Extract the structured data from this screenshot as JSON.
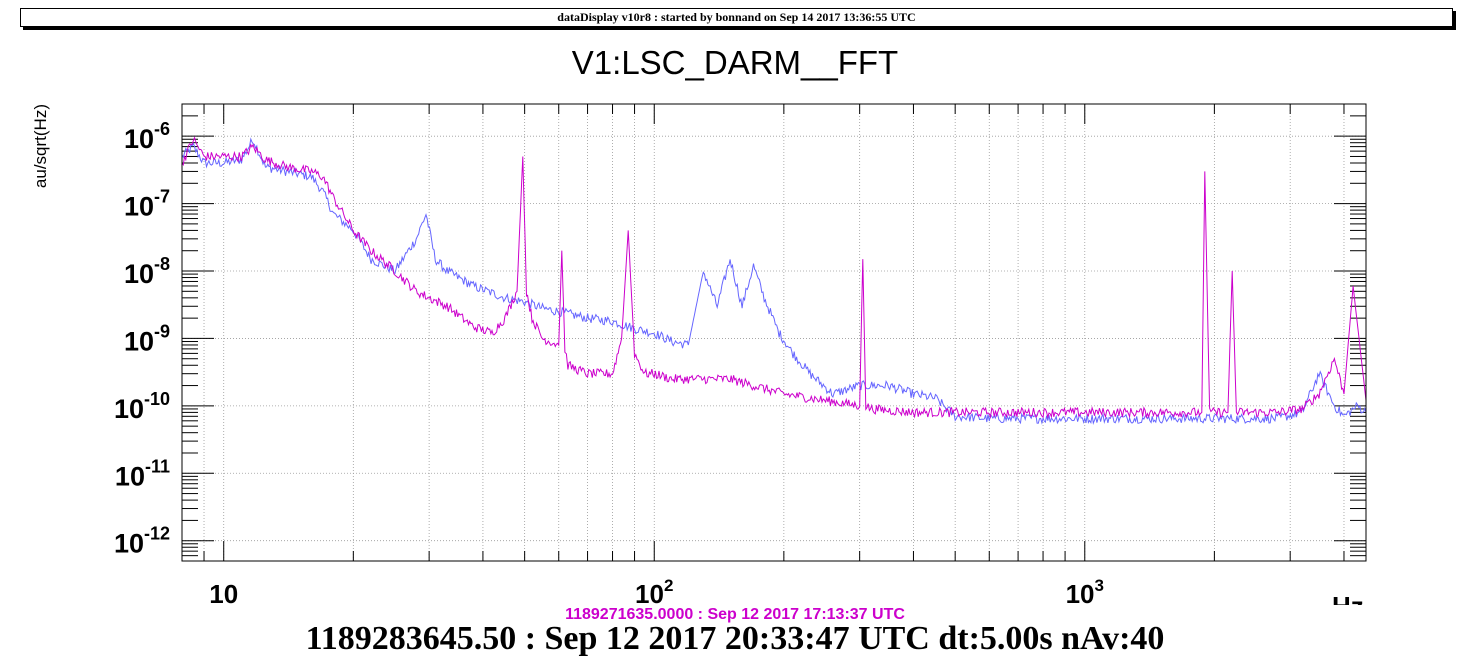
{
  "header": {
    "text": "dataDisplay v10r8 : started by bonnand on Sep 14 2017 13:36:55 UTC"
  },
  "colors": {
    "current": "#cc00cc",
    "reference": "#6666ff",
    "reference_label": "#cc00cc"
  },
  "chart_data": {
    "type": "line",
    "title": "V1:LSC_DARM__FFT",
    "ylabel": "au/sqrt(Hz)",
    "xlabel": "Hz",
    "xscale": "log",
    "yscale": "log",
    "xlim": [
      8,
      4500
    ],
    "ylim": [
      5e-13,
      3e-06
    ],
    "grid": true,
    "x_ticks": [
      {
        "value": 10,
        "base": "10",
        "exp": ""
      },
      {
        "value": 100,
        "base": "10",
        "exp": "2"
      },
      {
        "value": 1000,
        "base": "10",
        "exp": "3"
      }
    ],
    "y_ticks": [
      {
        "value": 1e-12,
        "base": "10",
        "exp": "-12"
      },
      {
        "value": 1e-11,
        "base": "10",
        "exp": "-11"
      },
      {
        "value": 1e-10,
        "base": "10",
        "exp": "-10"
      },
      {
        "value": 1e-09,
        "base": "10",
        "exp": "-9"
      },
      {
        "value": 1e-08,
        "base": "10",
        "exp": "-8"
      },
      {
        "value": 1e-07,
        "base": "10",
        "exp": "-7"
      },
      {
        "value": 1e-06,
        "base": "10",
        "exp": "-6"
      }
    ],
    "series": [
      {
        "color": "#6666ff",
        "x": [
          8,
          8.5,
          9,
          10,
          11,
          11.7,
          12.5,
          14,
          16,
          17,
          18,
          20,
          22,
          25,
          28,
          29.5,
          31,
          33,
          38,
          45,
          50,
          55,
          60,
          70,
          80,
          90,
          100,
          110,
          120,
          130,
          140,
          150,
          160,
          170,
          180,
          195,
          210,
          230,
          260,
          300,
          350,
          400,
          450,
          500,
          600,
          700,
          800,
          1000,
          1200,
          1500,
          1800,
          2200,
          2800,
          3200,
          3500,
          3800,
          4000,
          4300,
          4500
        ],
        "y": [
          5e-07,
          7e-07,
          4e-07,
          4e-07,
          4.5e-07,
          9e-07,
          3.5e-07,
          3e-07,
          2.5e-07,
          1.5e-07,
          7e-08,
          4e-08,
          1.5e-08,
          1e-08,
          3e-08,
          7e-08,
          1.5e-08,
          1e-08,
          6e-09,
          4e-09,
          3.5e-09,
          2.8e-09,
          2.5e-09,
          2e-09,
          1.8e-09,
          1.4e-09,
          1.2e-09,
          9e-10,
          8e-10,
          1e-08,
          3e-09,
          1.5e-08,
          3e-09,
          1.2e-08,
          4e-09,
          1.2e-09,
          6e-10,
          3e-10,
          1.5e-10,
          2e-10,
          2e-10,
          1.5e-10,
          1.3e-10,
          7e-11,
          6.5e-11,
          6.5e-11,
          6.5e-11,
          6.5e-11,
          6.5e-11,
          6.5e-11,
          6.5e-11,
          6.5e-11,
          6.5e-11,
          8e-11,
          3e-10,
          1e-10,
          7e-11,
          1e-10,
          8e-11
        ]
      },
      {
        "color": "#cc00cc",
        "x": [
          8,
          8.5,
          9,
          10,
          11,
          11.7,
          12.5,
          14,
          16,
          17,
          18,
          20,
          22,
          25,
          28,
          30,
          33,
          38,
          42,
          45,
          48,
          49.5,
          50.5,
          52,
          55,
          60,
          61,
          62,
          63,
          66,
          70,
          80,
          84,
          87,
          90,
          95,
          100,
          110,
          120,
          130,
          150,
          170,
          200,
          250,
          300,
          305,
          310,
          320,
          400,
          500,
          600,
          650,
          700,
          800,
          1000,
          1200,
          1500,
          1870,
          1900,
          1950,
          2150,
          2200,
          2250,
          2800,
          3200,
          3500,
          3800,
          4000,
          4200,
          4500
        ],
        "y": [
          4e-07,
          9e-07,
          5e-07,
          5e-07,
          5e-07,
          7e-07,
          4.5e-07,
          3.5e-07,
          3e-07,
          2.5e-07,
          1.2e-07,
          4e-08,
          2e-08,
          1e-08,
          5e-09,
          4e-09,
          3e-09,
          1.5e-09,
          1.2e-09,
          2e-09,
          5e-09,
          5e-07,
          5e-09,
          2e-09,
          1e-09,
          8e-10,
          2e-08,
          7e-10,
          4e-10,
          3.5e-10,
          3e-10,
          3e-10,
          1e-09,
          4e-08,
          6e-10,
          3e-10,
          3e-10,
          2.5e-10,
          2.5e-10,
          2.5e-10,
          2.5e-10,
          2e-10,
          1.5e-10,
          1.2e-10,
          1e-10,
          1.5e-08,
          1e-10,
          9e-11,
          8e-11,
          8e-11,
          8e-11,
          8e-11,
          8e-11,
          8e-11,
          8e-11,
          8e-11,
          8e-11,
          8e-11,
          3e-07,
          8e-11,
          8e-11,
          1e-08,
          8e-11,
          8e-11,
          9e-11,
          1.5e-10,
          5e-10,
          1.5e-10,
          6e-09,
          1.2e-10
        ]
      }
    ]
  },
  "reference_label": "1189271635.0000 : Sep 12 2017 17:13:37 UTC",
  "footer": "1189283645.50 : Sep 12 2017 20:33:47 UTC dt:5.00s nAv:40"
}
